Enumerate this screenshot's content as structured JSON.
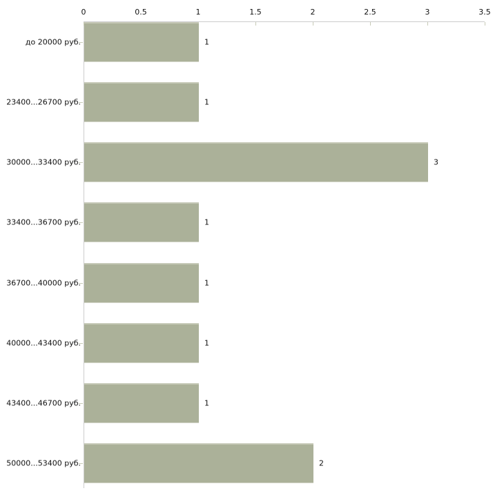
{
  "chart_data": {
    "type": "bar",
    "orientation": "horizontal",
    "title": "",
    "xlabel": "",
    "ylabel": "",
    "categories": [
      "до 20000 руб.",
      "23400...26700 руб.",
      "30000...33400 руб.",
      "33400...36700 руб.",
      "36700...40000 руб.",
      "40000...43400 руб.",
      "43400...46700 руб.",
      "50000...53400 руб."
    ],
    "values": [
      1,
      1,
      3,
      1,
      1,
      1,
      1,
      2
    ],
    "value_labels": [
      "1",
      "1",
      "3",
      "1",
      "1",
      "1",
      "1",
      "2"
    ],
    "xlim": [
      0,
      3.5
    ],
    "x_ticks": [
      0,
      0.5,
      1,
      1.5,
      2,
      2.5,
      3,
      3.5
    ],
    "x_tick_labels": [
      "0",
      "0.5",
      "1",
      "1.5",
      "2",
      "2.5",
      "3",
      "3.5"
    ],
    "axis_position": "top",
    "grid": false,
    "legend_position": "none",
    "colors": {
      "bar_fill": "#abb199",
      "bar_edge_top": "#c6c9b7",
      "bar_edge_bottom": "#d9dbd0",
      "axis_line": "#cccccc",
      "tick_mark": "#c7cab6",
      "text": "#111111",
      "background": "#ffffff"
    }
  }
}
